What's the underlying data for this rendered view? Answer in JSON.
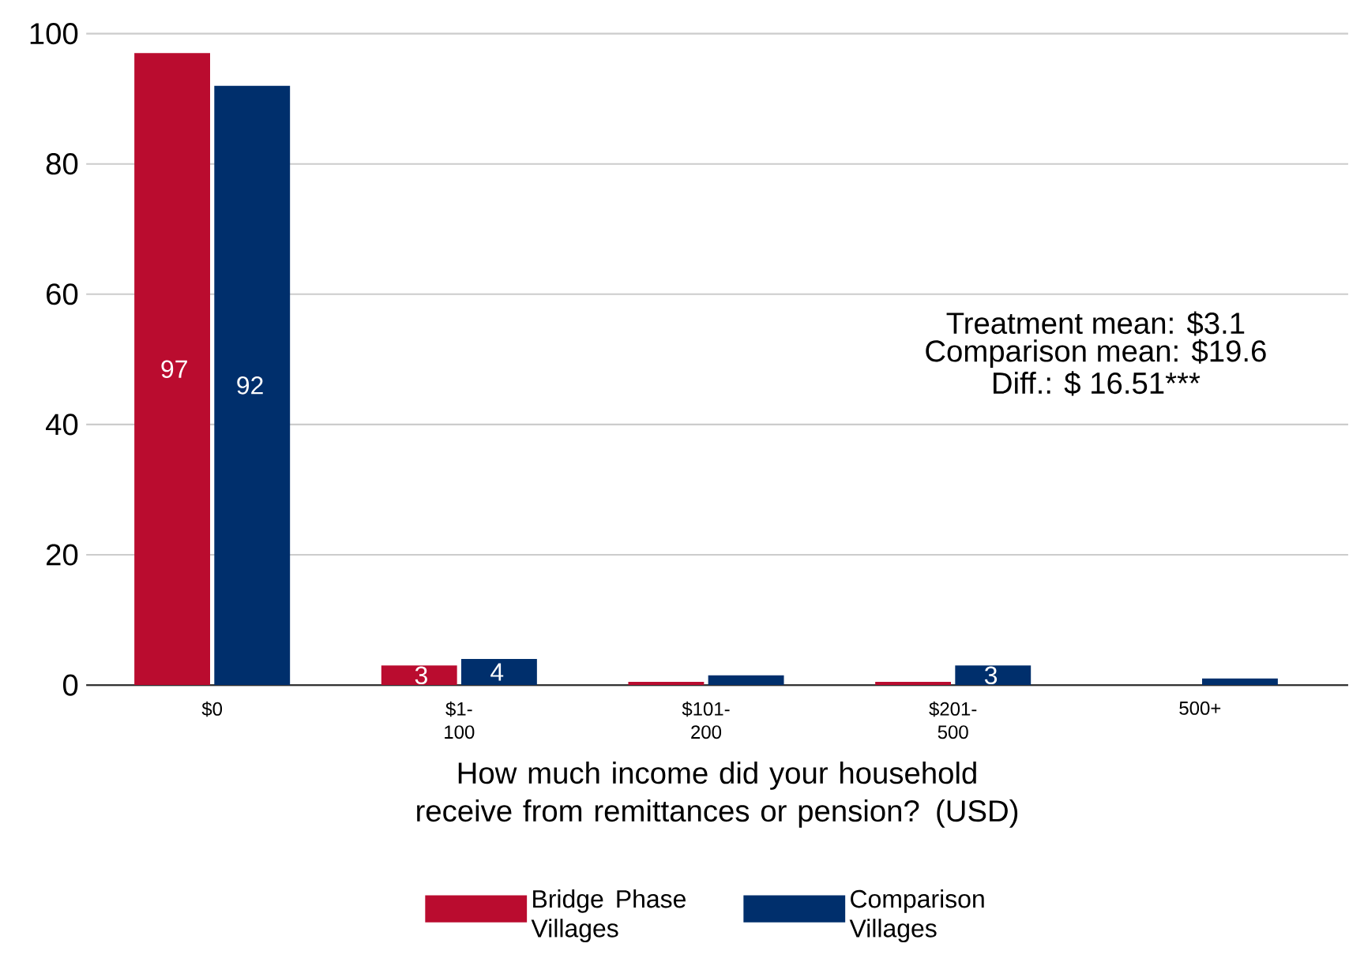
{
  "chart_data": {
    "type": "bar",
    "xlabel": "How much income did your household receive from remittances or pension? (USD)",
    "categories": [
      "$0",
      "$1-100",
      "$101-200",
      "$201-500",
      "500+"
    ],
    "series": [
      {
        "name": "Bridge Phase Villages",
        "color": "#ba0c2f",
        "values": [
          97,
          3,
          0.5,
          0.5,
          0
        ],
        "value_labels": [
          "97",
          "3",
          null,
          null,
          null
        ]
      },
      {
        "name": "Comparison Villages",
        "color": "#002f6c",
        "values": [
          92,
          4,
          1.5,
          3,
          1
        ],
        "value_labels": [
          "92",
          "4",
          null,
          "3",
          null
        ]
      }
    ],
    "annotations": [
      "Treatment mean: $3.1",
      "Comparison mean: $19.6",
      "Diff.: $ 16.51***"
    ],
    "ylim": [
      0,
      100
    ],
    "yticks": [
      0,
      20,
      40,
      60,
      80,
      100
    ],
    "grid": "y",
    "legend": "bottom"
  }
}
